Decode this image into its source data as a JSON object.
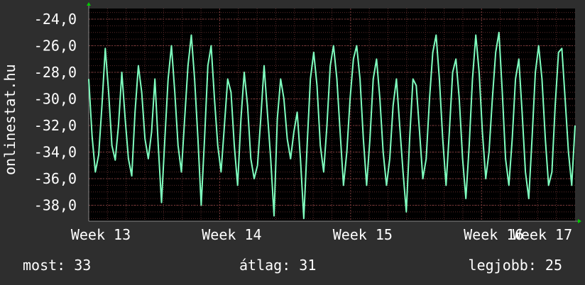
{
  "watermark": "onlinestat.hu",
  "colors": {
    "background": "#2e2e2e",
    "plot_background": "#000000",
    "grid": "#5a2a2a",
    "line": "#7fffbf",
    "axis_arrow": "#00cc00"
  },
  "footer": {
    "current": "most: 33",
    "average": "átlag: 31",
    "best": "legjobb: 25"
  },
  "chart_data": {
    "type": "line",
    "title": "",
    "xlabel": "",
    "ylabel": "",
    "grid": true,
    "legend": "none",
    "x_range": [
      0,
      26
    ],
    "ylim": [
      -39.2,
      -23.2
    ],
    "y_ticks": [
      -24,
      -26,
      -28,
      -30,
      -32,
      -34,
      -36,
      -38
    ],
    "y_tick_labels": [
      "-24,0",
      "-26,0",
      "-28,0",
      "-30,0",
      "-32,0",
      "-34,0",
      "-36,0",
      "-38,0"
    ],
    "x_ticks": [
      0,
      7,
      14,
      21,
      28
    ],
    "x_tick_labels": [
      "Week 13",
      "Week 14",
      "Week 15",
      "Week 16",
      "Week 17"
    ],
    "series": [
      {
        "values": [
          -28.5,
          -32.8,
          -35.5,
          -34.2,
          -30.5,
          -26.2,
          -29.5,
          -33.5,
          -34.6,
          -32.0,
          -28.0,
          -31.5,
          -34.5,
          -35.8,
          -31.0,
          -27.5,
          -29.5,
          -33.0,
          -34.5,
          -32.5,
          -28.5,
          -33.5,
          -37.8,
          -33.0,
          -28.5,
          -26.0,
          -29.5,
          -33.5,
          -35.5,
          -31.5,
          -27.5,
          -25.2,
          -28.5,
          -33.0,
          -38.0,
          -33.0,
          -27.5,
          -26.0,
          -30.0,
          -33.5,
          -35.5,
          -32.0,
          -28.5,
          -29.5,
          -33.5,
          -36.5,
          -31.5,
          -28.0,
          -30.5,
          -34.5,
          -36.0,
          -35.0,
          -31.5,
          -27.5,
          -31.0,
          -34.5,
          -38.8,
          -31.5,
          -28.5,
          -30.0,
          -33.0,
          -34.5,
          -32.5,
          -31.0,
          -34.5,
          -39.0,
          -33.5,
          -28.5,
          -26.5,
          -29.0,
          -33.5,
          -35.5,
          -32.0,
          -27.5,
          -26.0,
          -28.5,
          -32.5,
          -36.5,
          -34.0,
          -30.0,
          -27.0,
          -26.0,
          -28.5,
          -33.0,
          -36.5,
          -33.0,
          -28.5,
          -27.0,
          -30.0,
          -34.0,
          -36.5,
          -34.5,
          -30.5,
          -28.5,
          -32.0,
          -35.5,
          -38.5,
          -33.0,
          -28.5,
          -29.0,
          -32.5,
          -36.0,
          -34.5,
          -30.0,
          -26.5,
          -25.2,
          -28.5,
          -33.0,
          -36.5,
          -32.5,
          -28.0,
          -27.0,
          -30.0,
          -34.5,
          -37.5,
          -33.5,
          -28.5,
          -25.2,
          -28.0,
          -32.5,
          -36.0,
          -34.0,
          -30.0,
          -26.5,
          -25.0,
          -29.5,
          -34.5,
          -36.5,
          -33.0,
          -28.5,
          -27.0,
          -31.0,
          -35.5,
          -37.5,
          -33.0,
          -28.0,
          -26.0,
          -28.5,
          -33.0,
          -36.5,
          -35.5,
          -30.5,
          -26.5,
          -26.2,
          -30.0,
          -34.0,
          -36.5,
          -32.0
        ],
        "style": "solid"
      }
    ]
  }
}
